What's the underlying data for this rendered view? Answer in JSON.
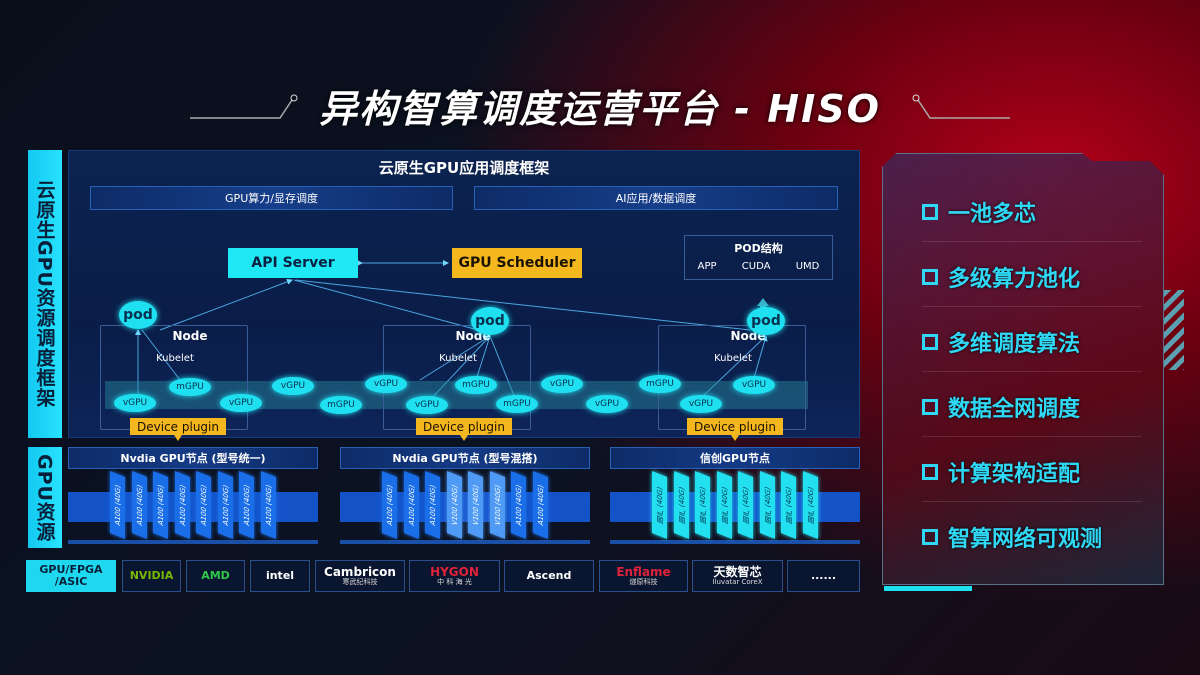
{
  "title": "异构智算调度运营平台 - HISO",
  "side_labels": {
    "framework": "云原生GPU资源调度框架",
    "resources": "GPU资源"
  },
  "framework": {
    "header": "云原生GPU应用调度框架",
    "bars": [
      "GPU算力/显存调度",
      "AI应用/数据调度"
    ],
    "api_server": "API Server",
    "gpu_scheduler": "GPU Scheduler",
    "pod_structure": {
      "title": "POD结构",
      "items": [
        "APP",
        "CUDA",
        "UMD"
      ]
    },
    "nodes": [
      {
        "label": "Node",
        "kubelet": "Kubelet",
        "pod": "pod",
        "device_plugin": "Device plugin"
      },
      {
        "label": "Node",
        "kubelet": "Kubelet",
        "pod": "pod",
        "device_plugin": "Device plugin"
      },
      {
        "label": "Node",
        "kubelet": "Kubelet",
        "pod": "pod",
        "device_plugin": "Device plugin"
      }
    ],
    "virtual_gpus": [
      "mGPU",
      "vGPU",
      "vGPU",
      "mGPU",
      "vGPU",
      "mGPU",
      "vGPU",
      "vGPU",
      "vGPU",
      "mGPU",
      "vGPU",
      "mGPU",
      "vGPU",
      "vGPU"
    ]
  },
  "gpu_nodes": [
    {
      "title": "Nvdia GPU节点 (型号统一)",
      "cards": [
        "A100 (40G)",
        "A100 (40G)",
        "A100 (40G)",
        "A100 (40G)",
        "A100 (40G)",
        "A100 (40G)",
        "A100 (40G)",
        "A100 (40G)"
      ],
      "color": "#1a6fe8"
    },
    {
      "title": "Nvdia GPU节点 (型号混搭)",
      "cards": [
        "A100 (40G)",
        "A100 (40G)",
        "A100 (40G)",
        "V100 (40G)",
        "V100 (40G)",
        "V100 (40G)",
        "A100 (40G)",
        "A100 (40G)"
      ],
      "color": "#1a6fe8",
      "alt_color": "#4e9af5"
    },
    {
      "title": "信创GPU节点",
      "cards": [
        "国产 (40G)",
        "国产 (40G)",
        "国产 (40G)",
        "国产 (40G)",
        "国产 (40G)",
        "国产 (40G)",
        "国产 (40G)",
        "国产 (40G)"
      ],
      "color": "#22e0f0"
    }
  ],
  "vendors": {
    "label": "GPU/FPGA /ASIC",
    "items": [
      {
        "name": "NVIDIA",
        "sub": "",
        "color": "#76b900"
      },
      {
        "name": "AMD",
        "sub": "",
        "color": "#2ec84a"
      },
      {
        "name": "intel",
        "sub": "",
        "color": "#ffffff"
      },
      {
        "name": "Cambricon",
        "sub": "寒武纪科技",
        "color": "#ffffff"
      },
      {
        "name": "HYGON",
        "sub": "中 科 海 光",
        "color": "#e0233a"
      },
      {
        "name": "Ascend",
        "sub": "",
        "color": "#ffffff"
      },
      {
        "name": "Enflame",
        "sub": "燧原科技",
        "color": "#e0233a"
      },
      {
        "name": "天数智芯",
        "sub": "Iluvatar CoreX",
        "color": "#ffffff"
      },
      {
        "name": "......",
        "sub": "",
        "color": "#ffffff"
      }
    ]
  },
  "features": [
    "一池多芯",
    "多级算力池化",
    "多维调度算法",
    "数据全网调度",
    "计算架构适配",
    "智算网络可观测"
  ],
  "colors": {
    "accent": "#1fe0f0",
    "scheduler": "#f5b71e",
    "panel": "#0c2350"
  }
}
